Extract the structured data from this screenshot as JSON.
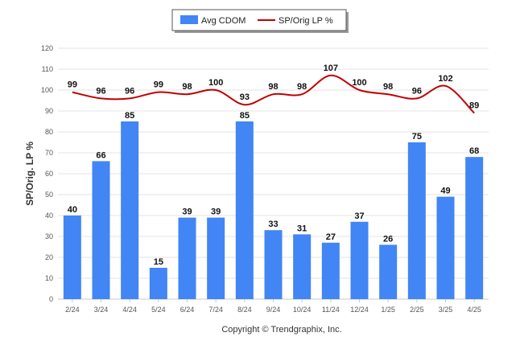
{
  "chart_data": {
    "type": "bar",
    "categories": [
      "2/24",
      "3/24",
      "4/24",
      "5/24",
      "6/24",
      "7/24",
      "8/24",
      "9/24",
      "10/24",
      "11/24",
      "12/24",
      "1/25",
      "2/25",
      "3/25",
      "4/25"
    ],
    "series": [
      {
        "name": "Avg CDOM",
        "type": "bar",
        "color": "#4285f4",
        "values": [
          40,
          66,
          85,
          15,
          39,
          39,
          85,
          33,
          31,
          27,
          37,
          26,
          75,
          49,
          68
        ]
      },
      {
        "name": "SP/Orig LP %",
        "type": "line",
        "color": "#c00000",
        "values": [
          99,
          96,
          96,
          99,
          98,
          100,
          93,
          98,
          98,
          107,
          100,
          98,
          96,
          102,
          89
        ]
      }
    ],
    "title": "",
    "xlabel": "",
    "ylabel": "SP/Orig. LP %",
    "ylim": [
      0,
      120
    ],
    "yticks": [
      0,
      10,
      20,
      30,
      40,
      50,
      60,
      70,
      80,
      90,
      100,
      110,
      120
    ],
    "grid": true,
    "legend": "top-center"
  },
  "footer": {
    "copyright": "Copyright © Trendgraphix, Inc."
  }
}
